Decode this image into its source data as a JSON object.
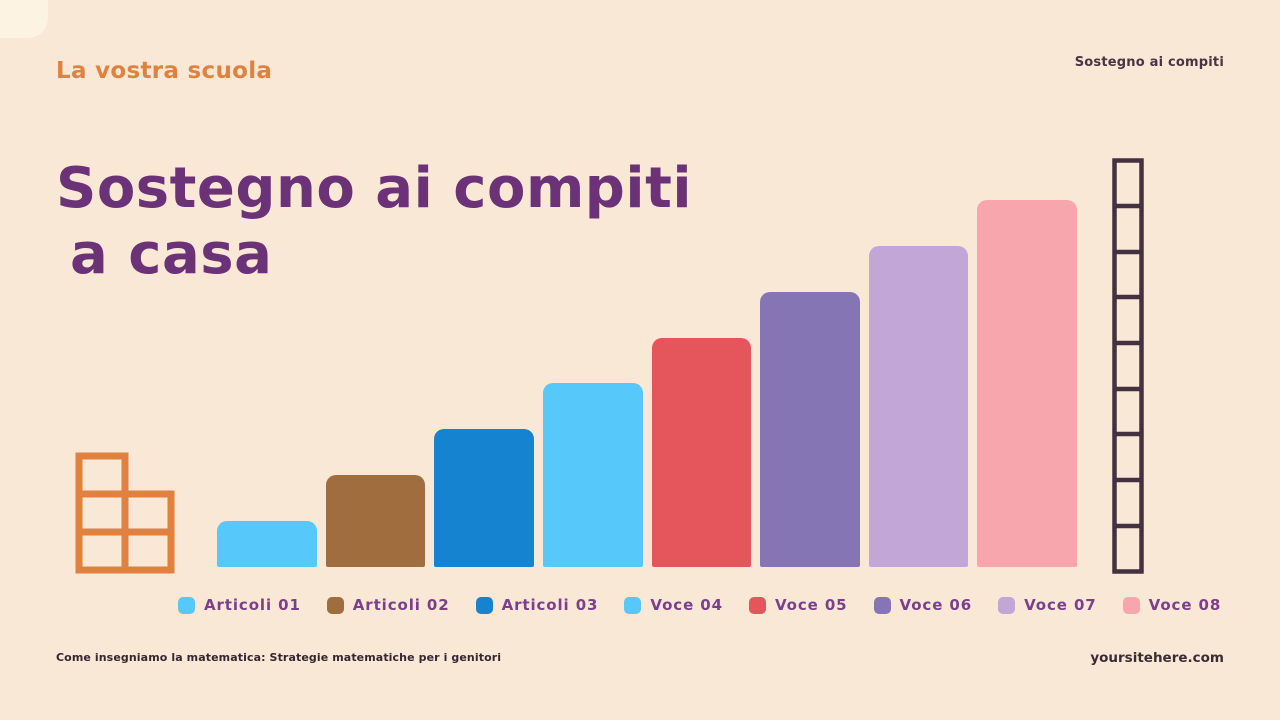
{
  "page": {
    "background_color": "#f9e8d6"
  },
  "header": {
    "kicker": "La vostra scuola",
    "kicker_color": "#e0823f",
    "right_label": "Sostegno ai compiti"
  },
  "title": {
    "line1": "Sostegno ai compiti",
    "line2": "a casa",
    "color": "#6b3277"
  },
  "chart_data": {
    "type": "bar",
    "categories": [
      "Articoli 01",
      "Articoli 02",
      "Articoli 03",
      "Voce 04",
      "Voce 05",
      "Voce 06",
      "Voce 07",
      "Voce 08"
    ],
    "values": [
      1,
      2,
      3,
      4,
      5,
      6,
      7,
      8
    ],
    "colors": [
      "#56c8fa",
      "#a06d3e",
      "#1583cf",
      "#56c8fa",
      "#e4565b",
      "#8575b5",
      "#c3a6d8",
      "#f7a6ae"
    ],
    "title": "Sostegno ai compiti a casa",
    "xlabel": "",
    "ylabel": "",
    "ylim": [
      0,
      8
    ],
    "grid": false,
    "axis_labels_shown": false,
    "legend_position": "bottom"
  },
  "decor": {
    "squares_color": "#e0813f",
    "ladder_color": "#443140",
    "ladder_rungs": 9
  },
  "footer": {
    "left": "Come insegniamo la matematica: Strategie matematiche per i genitori",
    "right": "yoursitehere.com"
  }
}
